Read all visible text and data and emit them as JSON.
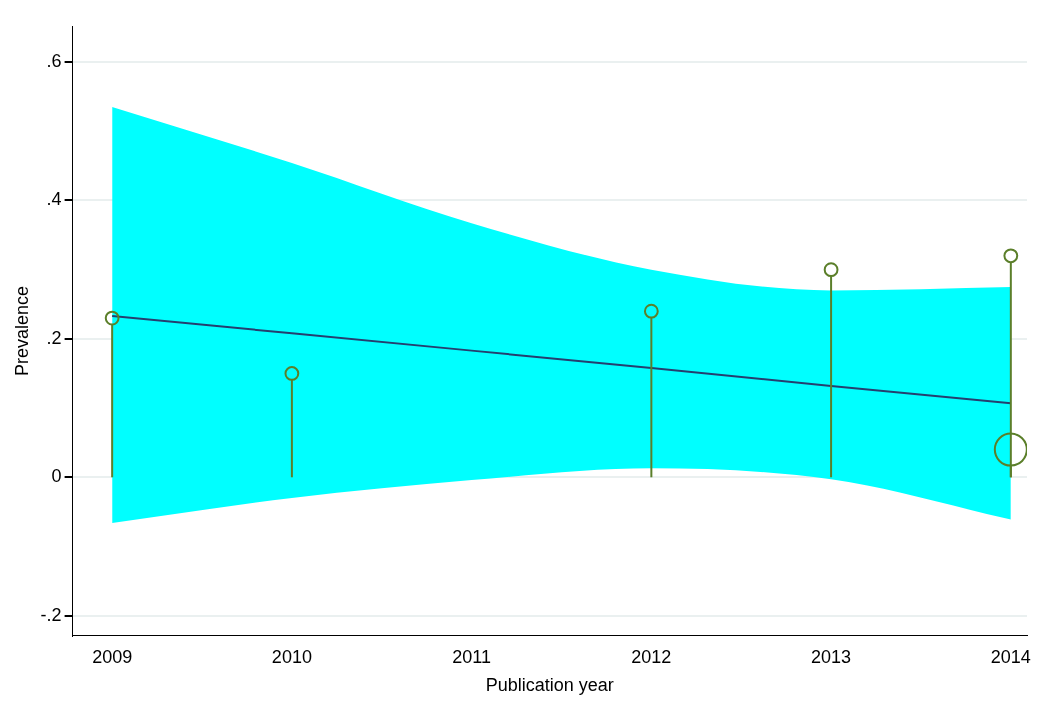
{
  "chart_data": {
    "type": "bubble",
    "xlabel": "Publication year",
    "ylabel": "Prevalence",
    "xlim": [
      2008.78,
      2014.09
    ],
    "ylim": [
      -0.229,
      0.652
    ],
    "xticks": [
      2009,
      2010,
      2011,
      2012,
      2013,
      2014
    ],
    "yticks": [
      {
        "value": -0.2,
        "label": "-.2"
      },
      {
        "value": 0,
        "label": "0"
      },
      {
        "value": 0.2,
        "label": ".2"
      },
      {
        "value": 0.4,
        "label": ".4"
      },
      {
        "value": 0.6,
        "label": ".6"
      }
    ],
    "grid": "y",
    "legend": false,
    "series": [
      {
        "type": "line",
        "color": "#253f6f",
        "x": [
          2009,
          2010,
          2011,
          2012,
          2013,
          2014
        ],
        "values": [
          0.233,
          0.208,
          0.183,
          0.158,
          0.132,
          0.107
        ],
        "lower": [
          -0.066,
          -0.03,
          -0.004,
          0.013,
          -0.003,
          -0.061
        ],
        "upper": [
          0.535,
          0.454,
          0.367,
          0.3,
          0.27,
          0.275
        ],
        "marker": "none"
      },
      {
        "type": "lollipop",
        "color": "#5b7f2a",
        "x": [
          2009,
          2010,
          2012,
          2013,
          2014,
          2014
        ],
        "values": [
          0.23,
          0.15,
          0.24,
          0.3,
          0.32,
          0.04
        ],
        "sizes": [
          0.16,
          0.16,
          0.16,
          0.16,
          0.16,
          1
        ],
        "marker": "circle"
      }
    ]
  }
}
